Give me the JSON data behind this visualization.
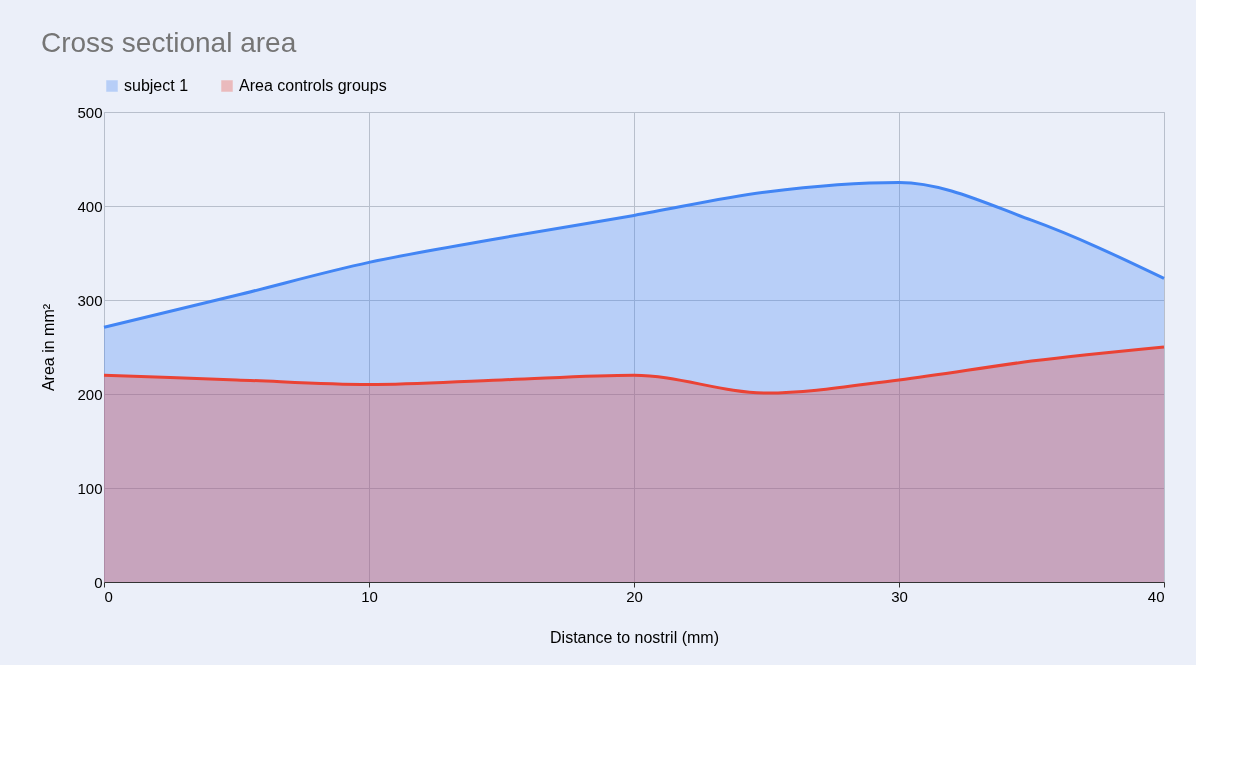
{
  "chart_data": {
    "type": "area",
    "title": "Cross sectional area",
    "xlabel": "Distance to nostril (mm)",
    "ylabel": "Area in mm²",
    "x": [
      0,
      5,
      10,
      15,
      20,
      25,
      30,
      35,
      40
    ],
    "series": [
      {
        "name": "subject 1",
        "color": "#4285f4",
        "values": [
          271,
          305,
          340,
          366,
          390,
          415,
          425,
          385,
          323
        ]
      },
      {
        "name": "Area controls groups",
        "color": "#ea4335",
        "values": [
          220,
          215,
          210,
          215,
          220,
          201,
          215,
          235,
          250
        ]
      }
    ],
    "xlim": [
      0,
      40
    ],
    "xticks": [
      0,
      10,
      20,
      30,
      40
    ],
    "ylim": [
      0,
      500
    ],
    "yticks": [
      0,
      100,
      200,
      300,
      400,
      500
    ],
    "grid": true,
    "legend": "top"
  }
}
